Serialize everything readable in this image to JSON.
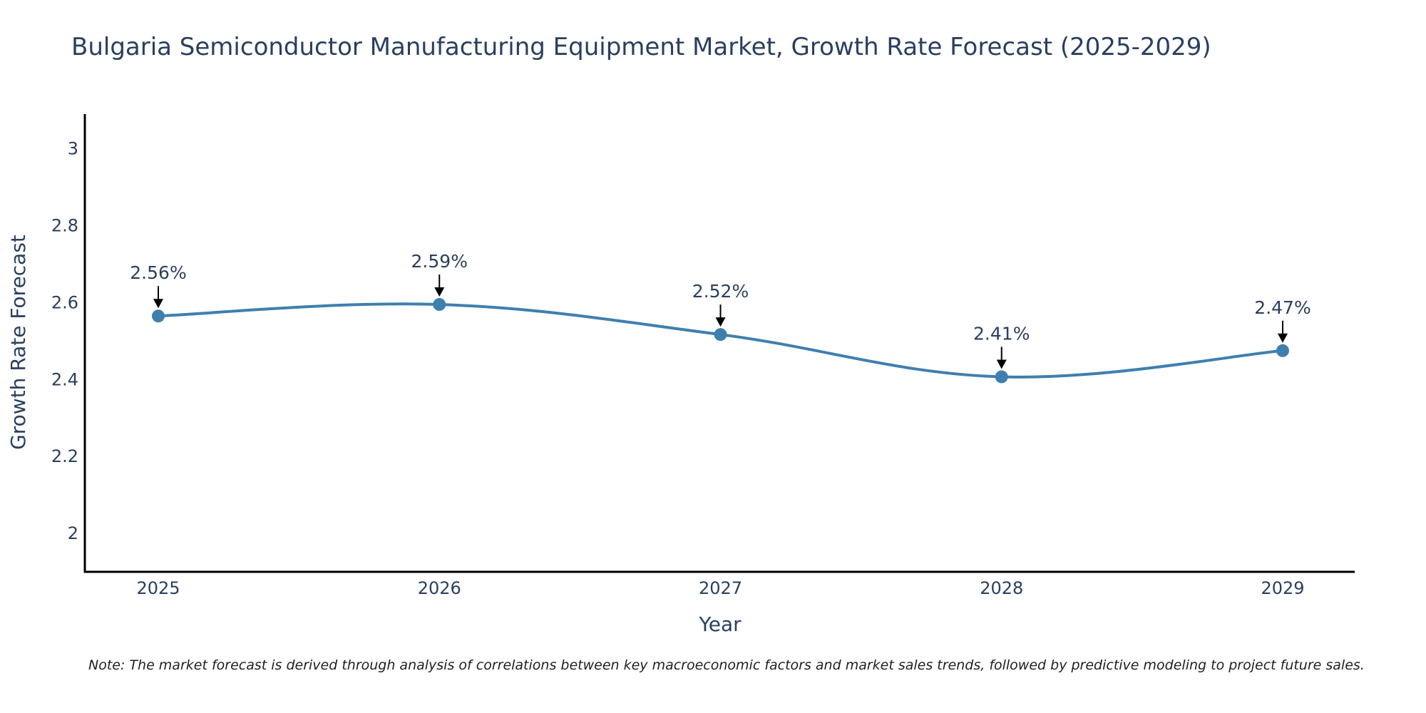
{
  "chart_data": {
    "type": "line",
    "title": "Bulgaria Semiconductor Manufacturing Equipment Market, Growth Rate Forecast (2025-2029)",
    "xlabel": "Year",
    "ylabel": "Growth Rate Forecast",
    "x": [
      "2025",
      "2026",
      "2027",
      "2028",
      "2029"
    ],
    "series": [
      {
        "name": "Growth Rate Forecast",
        "values": [
          2.565,
          2.595,
          2.517,
          2.407,
          2.475
        ],
        "labels": [
          "2.56%",
          "2.59%",
          "2.52%",
          "2.41%",
          "2.47%"
        ]
      }
    ],
    "ylim": [
      1.9,
      3.09
    ],
    "yticks": [
      2,
      2.2,
      2.4,
      2.6,
      2.8,
      3
    ],
    "ytick_labels": [
      "2",
      "2.2",
      "2.4",
      "2.6",
      "2.8",
      "3"
    ],
    "grid": false,
    "line_color": "#3f7fae",
    "marker_color": "#3f7fae",
    "arrow_color": "#000000",
    "axis_color": "#000000"
  },
  "note": "Note: The market forecast is derived through analysis of correlations between key macroeconomic factors and market sales trends, followed by predictive modeling to project future sales."
}
